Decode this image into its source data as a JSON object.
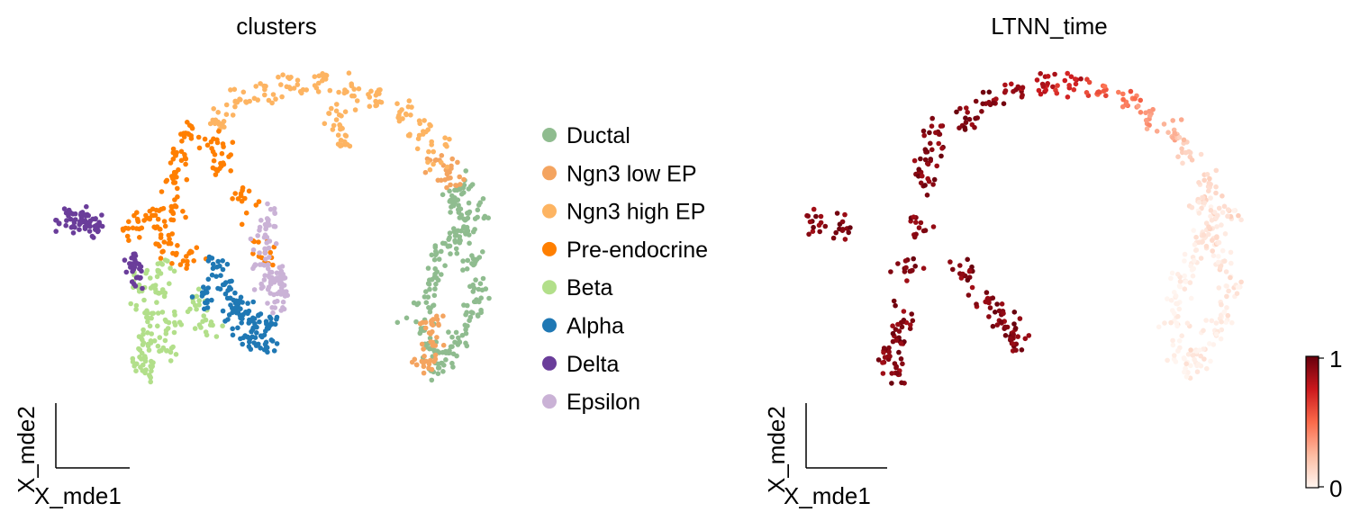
{
  "chart_data": [
    {
      "type": "scatter",
      "title": "clusters",
      "xlabel": "X_mde1",
      "ylabel": "X_mde2",
      "grid": false,
      "legend_placement": "right",
      "series": [
        {
          "name": "Ductal",
          "color": "#8fbc8f",
          "points": [
            [
              3.35,
              1.3
            ],
            [
              3.55,
              1.0
            ],
            [
              3.4,
              0.6
            ],
            [
              3.2,
              0.3
            ],
            [
              3.0,
              -0.1
            ],
            [
              2.85,
              -0.5
            ],
            [
              2.8,
              -0.95
            ],
            [
              2.95,
              -1.35
            ],
            [
              3.1,
              -1.7
            ],
            [
              3.3,
              -1.45
            ],
            [
              3.55,
              -1.1
            ],
            [
              3.75,
              -0.7
            ],
            [
              3.9,
              -0.3
            ],
            [
              3.75,
              0.2
            ],
            [
              3.6,
              0.6
            ],
            [
              3.85,
              1.0
            ],
            [
              3.55,
              1.5
            ]
          ]
        },
        {
          "name": "Ngn3 low EP",
          "color": "#f4a460",
          "points": [
            [
              3.15,
              1.85
            ],
            [
              3.3,
              1.65
            ],
            [
              3.0,
              -0.9
            ],
            [
              2.9,
              -1.6
            ],
            [
              2.95,
              -1.3
            ]
          ]
        },
        {
          "name": "Ngn3 high EP",
          "color": "#fdb462",
          "points": [
            [
              -1.1,
              2.7
            ],
            [
              -0.7,
              3.0
            ],
            [
              -0.2,
              3.2
            ],
            [
              0.3,
              3.3
            ],
            [
              0.8,
              3.3
            ],
            [
              1.4,
              3.2
            ],
            [
              1.9,
              3.05
            ],
            [
              2.4,
              2.8
            ],
            [
              2.8,
              2.45
            ],
            [
              3.05,
              2.1
            ],
            [
              1.2,
              2.7
            ],
            [
              1.3,
              2.35
            ]
          ]
        },
        {
          "name": "Pre-endocrine",
          "color": "#ff7f00",
          "points": [
            [
              -1.7,
              2.4
            ],
            [
              -1.85,
              2.0
            ],
            [
              -1.95,
              1.6
            ],
            [
              -2.0,
              1.2
            ],
            [
              -2.1,
              0.8
            ],
            [
              -2.15,
              0.4
            ],
            [
              -2.5,
              1.0
            ],
            [
              -2.75,
              0.75
            ],
            [
              -1.2,
              2.3
            ],
            [
              -1.05,
              1.9
            ],
            [
              -0.6,
              1.3
            ],
            [
              -1.7,
              0.25
            ],
            [
              -0.2,
              0.35
            ]
          ]
        },
        {
          "name": "Beta",
          "color": "#b2df8a",
          "points": [
            [
              -2.25,
              0.0
            ],
            [
              -2.3,
              -0.4
            ],
            [
              -2.4,
              -0.8
            ],
            [
              -2.5,
              -1.2
            ],
            [
              -2.65,
              -1.55
            ],
            [
              -2.45,
              -1.75
            ],
            [
              -2.15,
              -1.35
            ],
            [
              -2.0,
              -0.9
            ],
            [
              -2.6,
              -0.3
            ],
            [
              -1.6,
              -0.6
            ],
            [
              -1.3,
              -0.95
            ]
          ]
        },
        {
          "name": "Alpha",
          "color": "#1f78b4",
          "points": [
            [
              -1.15,
              0.05
            ],
            [
              -1.0,
              -0.25
            ],
            [
              -0.8,
              -0.5
            ],
            [
              -0.55,
              -0.75
            ],
            [
              -0.35,
              -1.0
            ],
            [
              -0.2,
              -1.25
            ],
            [
              -0.5,
              -1.15
            ],
            [
              -0.75,
              -0.85
            ],
            [
              -1.4,
              -0.45
            ],
            [
              -0.15,
              -0.85
            ]
          ]
        },
        {
          "name": "Delta",
          "color": "#6a3d9a",
          "points": [
            [
              -4.0,
              0.9
            ],
            [
              -3.85,
              0.88
            ],
            [
              -3.7,
              0.85
            ],
            [
              -3.55,
              0.82
            ],
            [
              -3.5,
              0.9
            ],
            [
              -2.75,
              0.15
            ],
            [
              -2.7,
              -0.1
            ]
          ]
        },
        {
          "name": "Epsilon",
          "color": "#cab2d6",
          "points": [
            [
              -0.1,
              0.95
            ],
            [
              -0.2,
              0.6
            ],
            [
              -0.3,
              0.2
            ],
            [
              -0.1,
              -0.3
            ],
            [
              0.1,
              -0.55
            ],
            [
              -0.05,
              -0.15
            ],
            [
              0.05,
              -0.05
            ]
          ]
        }
      ]
    },
    {
      "type": "scatter",
      "title": "LTNN_time",
      "xlabel": "X_mde1",
      "ylabel": "X_mde2",
      "grid": false,
      "colormap": "Reds",
      "colorbar": {
        "min": 0,
        "max": 1,
        "tick_labels": [
          "0",
          "1"
        ]
      },
      "points": [
        [
          -1.1,
          2.7,
          0.98
        ],
        [
          -0.7,
          3.0,
          0.93
        ],
        [
          -0.2,
          3.2,
          0.88
        ],
        [
          0.3,
          3.3,
          0.82
        ],
        [
          0.8,
          3.3,
          0.72
        ],
        [
          1.4,
          3.2,
          0.6
        ],
        [
          1.9,
          3.05,
          0.48
        ],
        [
          2.4,
          2.8,
          0.35
        ],
        [
          2.8,
          2.45,
          0.25
        ],
        [
          3.05,
          2.1,
          0.16
        ],
        [
          3.35,
          1.3,
          0.08
        ],
        [
          3.55,
          1.0,
          0.06
        ],
        [
          3.4,
          0.6,
          0.04
        ],
        [
          3.2,
          0.3,
          0.03
        ],
        [
          3.0,
          -0.1,
          0.03
        ],
        [
          2.85,
          -0.5,
          0.02
        ],
        [
          2.8,
          -0.95,
          0.02
        ],
        [
          2.95,
          -1.35,
          0.02
        ],
        [
          3.1,
          -1.7,
          0.02
        ],
        [
          3.3,
          -1.45,
          0.03
        ],
        [
          3.55,
          -1.1,
          0.03
        ],
        [
          3.75,
          -0.7,
          0.04
        ],
        [
          3.9,
          -0.3,
          0.05
        ],
        [
          3.75,
          0.2,
          0.06
        ],
        [
          3.6,
          0.6,
          0.07
        ],
        [
          3.85,
          1.0,
          0.09
        ],
        [
          3.55,
          1.5,
          0.12
        ],
        [
          -1.7,
          2.4,
          1.0
        ],
        [
          -1.85,
          2.0,
          1.0
        ],
        [
          -1.95,
          1.6,
          1.0
        ],
        [
          -2.1,
          0.8,
          1.0
        ],
        [
          -2.25,
          0.0,
          1.0
        ],
        [
          -2.4,
          -0.8,
          1.0
        ],
        [
          -2.5,
          -1.2,
          1.0
        ],
        [
          -2.65,
          -1.55,
          1.0
        ],
        [
          -2.45,
          -1.75,
          1.0
        ],
        [
          -1.15,
          0.05,
          1.0
        ],
        [
          -0.8,
          -0.5,
          1.0
        ],
        [
          -0.55,
          -0.75,
          1.0
        ],
        [
          -0.35,
          -1.0,
          1.0
        ],
        [
          -0.2,
          -1.25,
          1.0
        ],
        [
          -4.0,
          0.9,
          1.0
        ],
        [
          -3.55,
          0.82,
          1.0
        ]
      ]
    }
  ]
}
